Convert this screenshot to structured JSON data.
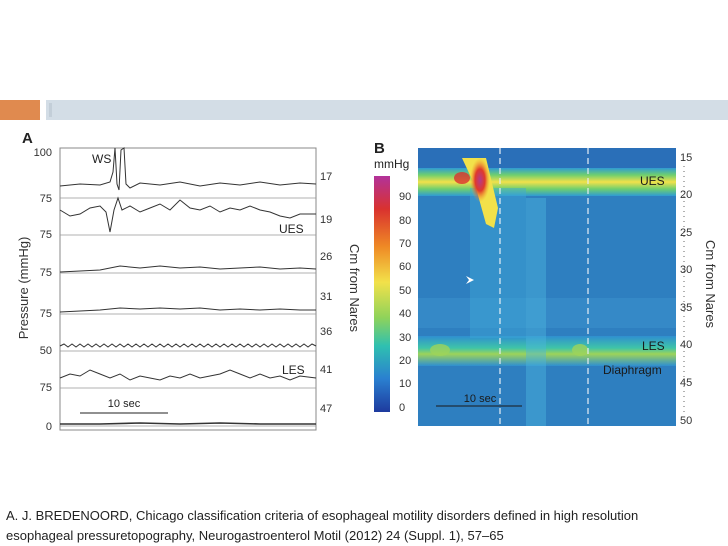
{
  "slide": {
    "accent_colors": {
      "orange": "#e08a4f",
      "blue": "#d3dde6"
    },
    "citation_line1": "A. J. BREDENOORD, Chicago classification criteria of esophageal motility disorders defined in high resolution",
    "citation_line2": "esophageal pressuretopography, Neurogastroenterol Motil (2012) 24 (Suppl. 1), 57–65"
  },
  "panel_a": {
    "letter": "A",
    "y_axis_label": "Pressure (mmHg)",
    "right_axis_label": "Cm from Nares",
    "channels": [
      {
        "scale": "100",
        "baseline": "75",
        "cm": "17",
        "label": "WS"
      },
      {
        "baseline": "75",
        "cm": "19",
        "label": "UES"
      },
      {
        "baseline": "75",
        "cm": "26",
        "label": ""
      },
      {
        "baseline": "75",
        "cm": "31",
        "label": ""
      },
      {
        "baseline": "50",
        "cm": "36",
        "label": ""
      },
      {
        "baseline": "75",
        "cm": "41",
        "label": "LES"
      },
      {
        "baseline": "0",
        "cm": "47",
        "label": ""
      }
    ],
    "scale_bar": "10 sec"
  },
  "panel_b": {
    "letter": "B",
    "colorbar_title": "mmHg",
    "colorbar_ticks": [
      "90",
      "80",
      "70",
      "60",
      "50",
      "40",
      "30",
      "20",
      "10",
      "0"
    ],
    "right_ticks": [
      "15",
      "20",
      "25",
      "30",
      "35",
      "40",
      "45",
      "50"
    ],
    "right_axis_label": "Cm from Nares",
    "labels": {
      "ues": "UES",
      "les": "LES",
      "diaphragm": "Diaphragm",
      "scale_bar": "10 sec"
    },
    "colors": {
      "background": "#2e7fc0",
      "ues_band": "#f2e14a",
      "les_band": "#9dd35a",
      "peak": "#b33a8c"
    }
  }
}
